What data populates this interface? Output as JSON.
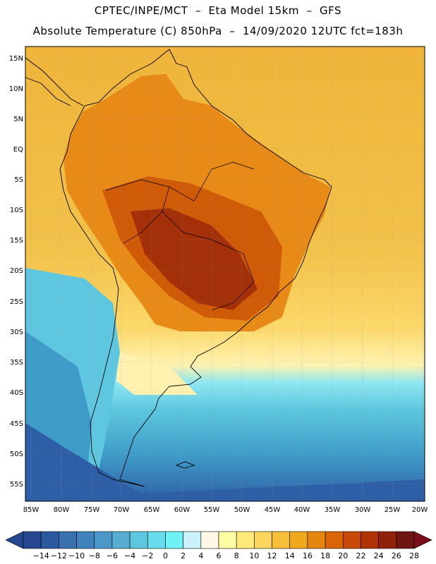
{
  "header": {
    "line1": "CPTEC/INPE/MCT  –  Eta Model 15km  –  GFS",
    "line2": "Absolute Temperature (C) 850hPa  –  14/09/2020 12UTC fct=183h"
  },
  "map": {
    "lat_labels": [
      "15N",
      "10N",
      "5N",
      "EQ",
      "5S",
      "10S",
      "15S",
      "20S",
      "25S",
      "30S",
      "35S",
      "40S",
      "45S",
      "50S",
      "55S"
    ],
    "lon_labels": [
      "85W",
      "80W",
      "75W",
      "70W",
      "65W",
      "60W",
      "55W",
      "50W",
      "45W",
      "40W",
      "35W",
      "30W",
      "25W",
      "20W"
    ],
    "gridlines": true
  },
  "colorbar": {
    "labels": [
      "-14",
      "-12",
      "-10",
      "-8",
      "-6",
      "-4",
      "-2",
      "0",
      "2",
      "4",
      "6",
      "8",
      "10",
      "12",
      "14",
      "16",
      "18",
      "20",
      "22",
      "24",
      "26",
      "28"
    ],
    "colors": [
      "#24478f",
      "#2c5aa0",
      "#3a6fb0",
      "#3f82bd",
      "#4a98c8",
      "#55aed2",
      "#5ec6de",
      "#67dcec",
      "#6ff2f6",
      "#c9f2fb",
      "#fff8e6",
      "#fffca6",
      "#ffe97a",
      "#fcd55e",
      "#f5bf3a",
      "#f0a81d",
      "#e5860e",
      "#da6508",
      "#c84a04",
      "#b03106",
      "#92210a",
      "#701612"
    ],
    "under_color": "#24478f",
    "over_color": "#7a0d1a"
  }
}
